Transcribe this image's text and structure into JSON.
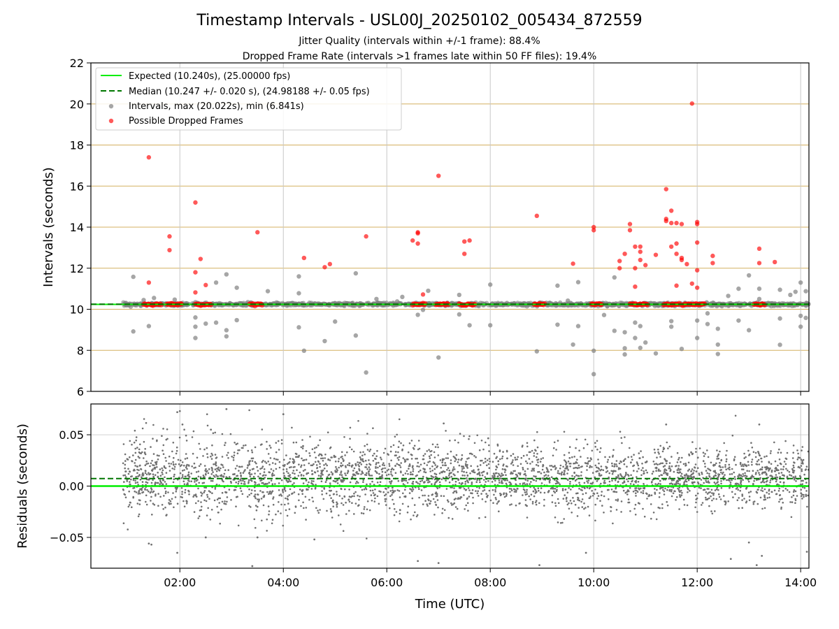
{
  "figure": {
    "title": "Timestamp Intervals - USL00J_20250102_005434_872559",
    "subtitle_1": "Jitter Quality (intervals within +/-1 frame): 88.4%",
    "subtitle_2": "Dropped Frame Rate (intervals >1 frames late within 50 FF files): 19.4%"
  },
  "colors": {
    "expected": "#00ee00",
    "median": "#007700",
    "intervals": "#808080",
    "dropped": "#ff0000",
    "hgrid": "#d4b060",
    "vgrid": "#c8c8c8"
  },
  "chart_data": [
    {
      "type": "scatter",
      "xlabel": "",
      "ylabel": "Intervals (seconds)",
      "x_unit": "hours UTC",
      "xlim": [
        0.28,
        14.16
      ],
      "ylim": [
        6,
        22
      ],
      "yticks": [
        6,
        8,
        10,
        12,
        14,
        16,
        18,
        20,
        22
      ],
      "xticks": [
        2,
        4,
        6,
        8,
        10,
        12,
        14
      ],
      "xtick_labels": [
        "02:00",
        "04:00",
        "06:00",
        "08:00",
        "10:00",
        "12:00",
        "14:00"
      ],
      "grid": "on",
      "legend_position": "upper-left",
      "expected_line": {
        "y": 10.24,
        "label": "Expected (10.240s), (25.00000 fps)"
      },
      "median_line": {
        "y": 10.247,
        "label": "Median (10.247 +/- 0.020 s), (24.98188 +/- 0.05 fps)"
      },
      "series": [
        {
          "name": "Intervals, max (20.022s), min (6.841s)",
          "baseline_band": {
            "x_start": 0.9,
            "x_end": 14.16,
            "y": 10.24,
            "spread": 0.07
          },
          "outliers": [
            [
              1.1,
              11.58
            ],
            [
              1.1,
              8.92
            ],
            [
              1.3,
              10.45
            ],
            [
              1.4,
              9.18
            ],
            [
              1.5,
              10.55
            ],
            [
              1.9,
              10.47
            ],
            [
              2.3,
              9.15
            ],
            [
              2.3,
              8.6
            ],
            [
              2.3,
              9.6
            ],
            [
              2.5,
              9.3
            ],
            [
              2.7,
              9.35
            ],
            [
              2.7,
              11.3
            ],
            [
              2.9,
              11.7
            ],
            [
              2.9,
              8.98
            ],
            [
              2.9,
              8.68
            ],
            [
              3.1,
              11.05
            ],
            [
              3.1,
              9.47
            ],
            [
              3.7,
              10.88
            ],
            [
              4.3,
              11.6
            ],
            [
              4.3,
              10.78
            ],
            [
              4.3,
              9.12
            ],
            [
              4.4,
              7.98
            ],
            [
              4.8,
              8.45
            ],
            [
              5.0,
              9.4
            ],
            [
              5.4,
              11.75
            ],
            [
              5.4,
              8.72
            ],
            [
              5.6,
              6.92
            ],
            [
              5.8,
              10.5
            ],
            [
              6.2,
              10.38
            ],
            [
              6.3,
              10.6
            ],
            [
              6.6,
              9.73
            ],
            [
              6.7,
              9.97
            ],
            [
              6.8,
              10.9
            ],
            [
              7.0,
              7.65
            ],
            [
              7.4,
              10.7
            ],
            [
              7.4,
              9.75
            ],
            [
              7.6,
              9.22
            ],
            [
              8.0,
              11.2
            ],
            [
              8.0,
              9.22
            ],
            [
              8.9,
              7.95
            ],
            [
              9.3,
              11.15
            ],
            [
              9.3,
              9.25
            ],
            [
              9.5,
              10.42
            ],
            [
              9.6,
              8.28
            ],
            [
              9.7,
              11.32
            ],
            [
              9.7,
              9.18
            ],
            [
              10.0,
              7.98
            ],
            [
              10.0,
              6.84
            ],
            [
              10.2,
              9.72
            ],
            [
              10.4,
              8.95
            ],
            [
              10.4,
              11.55
            ],
            [
              10.6,
              8.88
            ],
            [
              10.6,
              8.1
            ],
            [
              10.6,
              7.8
            ],
            [
              10.8,
              9.35
            ],
            [
              10.8,
              8.6
            ],
            [
              10.9,
              9.18
            ],
            [
              10.9,
              8.12
            ],
            [
              11.0,
              8.38
            ],
            [
              11.2,
              7.85
            ],
            [
              11.5,
              9.42
            ],
            [
              11.5,
              9.15
            ],
            [
              11.7,
              8.07
            ],
            [
              12.0,
              9.45
            ],
            [
              12.0,
              8.6
            ],
            [
              12.2,
              9.8
            ],
            [
              12.2,
              9.28
            ],
            [
              12.4,
              9.05
            ],
            [
              12.4,
              8.28
            ],
            [
              12.4,
              7.82
            ],
            [
              12.6,
              10.65
            ],
            [
              12.8,
              11.0
            ],
            [
              12.8,
              9.45
            ],
            [
              13.0,
              11.65
            ],
            [
              13.0,
              8.98
            ],
            [
              13.2,
              10.5
            ],
            [
              13.2,
              11.0
            ],
            [
              13.6,
              10.95
            ],
            [
              13.6,
              9.55
            ],
            [
              13.6,
              8.27
            ],
            [
              13.8,
              10.7
            ],
            [
              13.9,
              10.85
            ],
            [
              14.0,
              11.3
            ],
            [
              14.0,
              9.68
            ],
            [
              14.0,
              9.15
            ],
            [
              14.1,
              9.58
            ],
            [
              14.1,
              10.88
            ]
          ]
        },
        {
          "name": "Possible Dropped Frames",
          "points": [
            [
              1.4,
              17.4
            ],
            [
              1.4,
              11.3
            ],
            [
              1.8,
              13.55
            ],
            [
              1.8,
              12.88
            ],
            [
              2.3,
              15.2
            ],
            [
              2.3,
              11.8
            ],
            [
              2.4,
              12.45
            ],
            [
              2.3,
              10.82
            ],
            [
              2.5,
              11.18
            ],
            [
              3.5,
              13.75
            ],
            [
              4.4,
              12.5
            ],
            [
              4.8,
              12.05
            ],
            [
              4.9,
              12.2
            ],
            [
              5.6,
              13.55
            ],
            [
              6.6,
              13.7
            ],
            [
              6.6,
              13.75
            ],
            [
              6.5,
              13.35
            ],
            [
              6.6,
              13.2
            ],
            [
              6.7,
              10.72
            ],
            [
              7.0,
              16.5
            ],
            [
              7.5,
              13.3
            ],
            [
              7.6,
              13.35
            ],
            [
              7.5,
              12.7
            ],
            [
              8.9,
              14.55
            ],
            [
              9.6,
              12.22
            ],
            [
              10.0,
              14.0
            ],
            [
              10.0,
              13.85
            ],
            [
              10.5,
              12.0
            ],
            [
              10.5,
              12.35
            ],
            [
              10.6,
              12.7
            ],
            [
              10.7,
              14.15
            ],
            [
              10.7,
              13.85
            ],
            [
              10.8,
              13.05
            ],
            [
              10.9,
              13.05
            ],
            [
              10.8,
              12.0
            ],
            [
              10.8,
              11.1
            ],
            [
              10.9,
              12.4
            ],
            [
              10.9,
              12.8
            ],
            [
              11.0,
              12.15
            ],
            [
              11.2,
              12.65
            ],
            [
              11.4,
              15.85
            ],
            [
              11.4,
              14.4
            ],
            [
              11.4,
              14.3
            ],
            [
              11.5,
              14.8
            ],
            [
              11.5,
              14.2
            ],
            [
              11.5,
              13.05
            ],
            [
              11.6,
              14.2
            ],
            [
              11.6,
              13.2
            ],
            [
              11.6,
              12.7
            ],
            [
              11.7,
              14.15
            ],
            [
              11.7,
              12.5
            ],
            [
              11.7,
              12.4
            ],
            [
              11.8,
              12.2
            ],
            [
              11.6,
              11.15
            ],
            [
              11.9,
              20.02
            ],
            [
              11.9,
              11.25
            ],
            [
              12.0,
              14.25
            ],
            [
              12.0,
              14.15
            ],
            [
              12.0,
              13.25
            ],
            [
              12.0,
              11.9
            ],
            [
              12.0,
              11.05
            ],
            [
              12.3,
              12.6
            ],
            [
              12.3,
              12.25
            ],
            [
              13.2,
              12.95
            ],
            [
              13.2,
              12.25
            ],
            [
              13.5,
              12.3
            ]
          ],
          "baseline_clusters": [
            [
              1.3,
              1.65
            ],
            [
              1.75,
              2.05
            ],
            [
              2.3,
              2.6
            ],
            [
              3.35,
              3.6
            ],
            [
              6.5,
              6.75
            ],
            [
              6.95,
              7.2
            ],
            [
              7.4,
              7.7
            ],
            [
              8.85,
              9.05
            ],
            [
              9.95,
              10.15
            ],
            [
              10.7,
              11.05
            ],
            [
              11.35,
              11.65
            ],
            [
              11.7,
              12.15
            ],
            [
              13.1,
              13.3
            ]
          ]
        }
      ]
    },
    {
      "type": "scatter",
      "xlabel": "Time (UTC)",
      "ylabel": "Residuals (seconds)",
      "x_unit": "hours UTC",
      "xlim": [
        0.28,
        14.16
      ],
      "ylim": [
        -0.08,
        0.08
      ],
      "yticks": [
        -0.05,
        0.0,
        0.05
      ],
      "ytick_labels": [
        "−0.05",
        "0.00",
        "0.05"
      ],
      "xticks": [
        2,
        4,
        6,
        8,
        10,
        12,
        14
      ],
      "xtick_labels": [
        "02:00",
        "04:00",
        "06:00",
        "08:00",
        "10:00",
        "12:00",
        "14:00"
      ],
      "grid": "on",
      "expected_line": {
        "y": 0.0
      },
      "median_line": {
        "y": 0.0073
      },
      "series": [
        {
          "name": "",
          "x_start": 0.9,
          "x_end": 14.16,
          "count": 3400,
          "mean": 0.008,
          "spread_start": 0.026,
          "spread_end": 0.018,
          "extremes": [
            [
              1.4,
              -0.056
            ],
            [
              1.45,
              -0.057
            ],
            [
              1.95,
              0.072
            ],
            [
              2.0,
              0.073
            ],
            [
              2.05,
              0.06
            ],
            [
              1.95,
              -0.065
            ],
            [
              2.6,
              0.055
            ],
            [
              2.5,
              -0.05
            ],
            [
              2.9,
              0.075
            ],
            [
              3.4,
              -0.078
            ],
            [
              3.5,
              -0.05
            ],
            [
              4.0,
              0.07
            ],
            [
              4.6,
              -0.052
            ],
            [
              6.6,
              -0.073
            ],
            [
              7.0,
              -0.075
            ],
            [
              7.1,
              0.061
            ],
            [
              8.95,
              -0.077
            ],
            [
              9.85,
              -0.065
            ],
            [
              11.4,
              0.06
            ],
            [
              12.65,
              -0.071
            ],
            [
              13.0,
              -0.055
            ],
            [
              13.15,
              -0.077
            ],
            [
              13.2,
              0.06
            ],
            [
              13.25,
              -0.068
            ],
            [
              14.12,
              -0.064
            ]
          ]
        }
      ]
    }
  ]
}
